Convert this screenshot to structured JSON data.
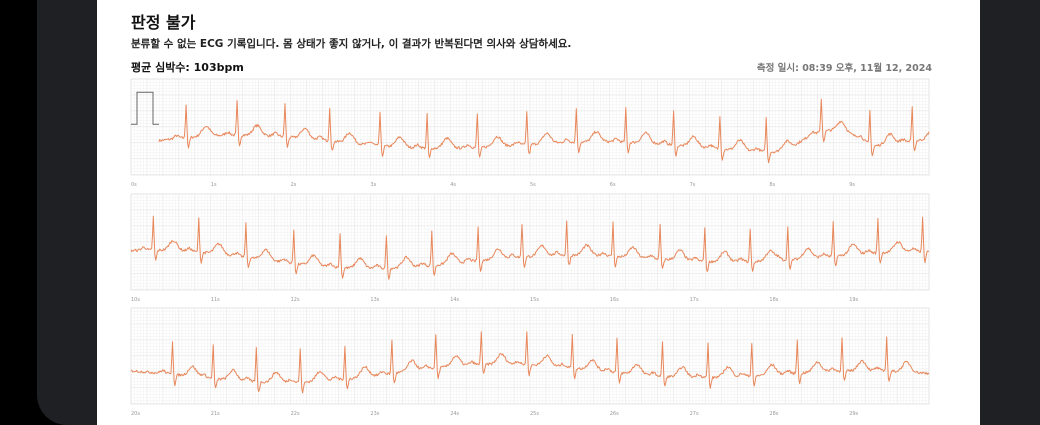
{
  "header": {
    "title": "판정 불가",
    "description": "분류할 수 없는 ECG 기록입니다. 몸 상태가 좋지 않거나, 이 결과가 반복된다면 의사와 상담하세요.",
    "average_heart_rate": "평균 심박수: 103bpm",
    "measured_at": "측정 일시: 08:39 오후, 11월 12, 2024"
  },
  "colors": {
    "trace": "#e8875a",
    "calibration": "#666666",
    "grid_major": "#dddddd",
    "grid_minor": "#f1f1f1"
  },
  "strips": [
    {
      "tick_labels": [
        "0s",
        "1s",
        "2s",
        "3s",
        "4s",
        "5s",
        "6s",
        "7s",
        "8s",
        "9s"
      ],
      "r_peak_times_s": [
        0.69,
        1.33,
        1.93,
        2.49,
        3.12,
        3.71,
        4.34,
        4.96,
        5.58,
        6.2,
        6.8,
        7.38,
        7.96,
        8.65,
        9.26,
        9.79
      ]
    },
    {
      "tick_labels": [
        "10s",
        "11s",
        "12s",
        "13s",
        "14s",
        "15s",
        "16s",
        "17s",
        "18s",
        "19s"
      ],
      "r_peak_times_s": [
        0.28,
        0.85,
        1.44,
        2.04,
        2.62,
        3.2,
        3.77,
        4.35,
        4.9,
        5.46,
        6.04,
        6.63,
        7.19,
        7.76,
        8.23,
        8.8,
        9.36,
        9.92
      ]
    },
    {
      "tick_labels": [
        "20s",
        "21s",
        "22s",
        "23s",
        "24s",
        "25s",
        "26s",
        "27s",
        "28s",
        "29s"
      ],
      "r_peak_times_s": [
        0.52,
        1.03,
        1.57,
        2.12,
        2.68,
        3.27,
        3.82,
        4.39,
        4.96,
        5.53,
        6.09,
        6.66,
        7.23,
        7.78,
        8.35,
        8.91,
        9.47
      ]
    }
  ]
}
